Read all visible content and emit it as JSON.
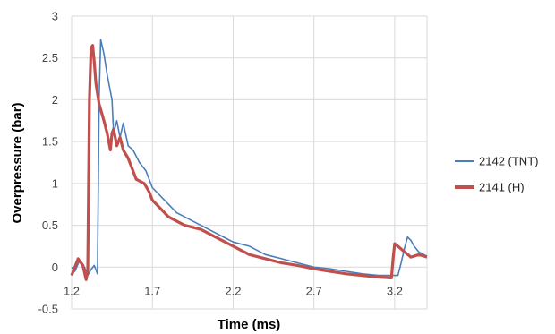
{
  "chart_data": {
    "type": "line",
    "title": "",
    "xlabel": "Time (ms)",
    "ylabel": "Overpressure (bar)",
    "xlim": [
      1.2,
      3.4
    ],
    "ylim": [
      -0.5,
      3
    ],
    "xticks": [
      "1.2",
      "1.7",
      "2.2",
      "2.7",
      "3.2"
    ],
    "xtick_values": [
      1.2,
      1.7,
      2.2,
      2.7,
      3.2
    ],
    "yticks": [
      "-0.5",
      "0",
      "0.5",
      "1",
      "1.5",
      "2",
      "2.5",
      "3"
    ],
    "ytick_values": [
      -0.5,
      0,
      0.5,
      1,
      1.5,
      2,
      2.5,
      3
    ],
    "grid": true,
    "legend_position": "right",
    "series": [
      {
        "name": "2142 (TNT)",
        "color": "#4a7ebb",
        "points": [
          [
            1.2,
            0.0
          ],
          [
            1.22,
            -0.05
          ],
          [
            1.25,
            0.08
          ],
          [
            1.28,
            0.0
          ],
          [
            1.3,
            -0.1
          ],
          [
            1.32,
            -0.03
          ],
          [
            1.34,
            0.02
          ],
          [
            1.36,
            -0.08
          ],
          [
            1.37,
            2.0
          ],
          [
            1.38,
            2.72
          ],
          [
            1.4,
            2.55
          ],
          [
            1.42,
            2.3
          ],
          [
            1.45,
            2.0
          ],
          [
            1.46,
            1.6
          ],
          [
            1.48,
            1.75
          ],
          [
            1.5,
            1.55
          ],
          [
            1.52,
            1.72
          ],
          [
            1.55,
            1.45
          ],
          [
            1.58,
            1.4
          ],
          [
            1.62,
            1.25
          ],
          [
            1.66,
            1.15
          ],
          [
            1.7,
            0.95
          ],
          [
            1.75,
            0.85
          ],
          [
            1.8,
            0.75
          ],
          [
            1.85,
            0.65
          ],
          [
            1.9,
            0.6
          ],
          [
            1.95,
            0.55
          ],
          [
            2.0,
            0.5
          ],
          [
            2.1,
            0.4
          ],
          [
            2.2,
            0.3
          ],
          [
            2.3,
            0.25
          ],
          [
            2.4,
            0.15
          ],
          [
            2.5,
            0.1
          ],
          [
            2.6,
            0.05
          ],
          [
            2.7,
            0.0
          ],
          [
            2.8,
            -0.02
          ],
          [
            2.9,
            -0.05
          ],
          [
            3.0,
            -0.08
          ],
          [
            3.1,
            -0.1
          ],
          [
            3.2,
            -0.1
          ],
          [
            3.22,
            -0.1
          ],
          [
            3.24,
            0.05
          ],
          [
            3.26,
            0.22
          ],
          [
            3.28,
            0.36
          ],
          [
            3.3,
            0.32
          ],
          [
            3.32,
            0.25
          ],
          [
            3.35,
            0.18
          ],
          [
            3.38,
            0.15
          ],
          [
            3.4,
            0.13
          ]
        ]
      },
      {
        "name": "2141 (H)",
        "color": "#c0504d",
        "points": [
          [
            1.2,
            -0.1
          ],
          [
            1.22,
            0.0
          ],
          [
            1.24,
            0.1
          ],
          [
            1.27,
            0.02
          ],
          [
            1.29,
            -0.15
          ],
          [
            1.3,
            -0.05
          ],
          [
            1.31,
            2.0
          ],
          [
            1.32,
            2.62
          ],
          [
            1.33,
            2.65
          ],
          [
            1.34,
            2.45
          ],
          [
            1.35,
            2.2
          ],
          [
            1.37,
            1.95
          ],
          [
            1.4,
            1.75
          ],
          [
            1.42,
            1.6
          ],
          [
            1.44,
            1.4
          ],
          [
            1.45,
            1.6
          ],
          [
            1.46,
            1.65
          ],
          [
            1.48,
            1.45
          ],
          [
            1.5,
            1.55
          ],
          [
            1.52,
            1.4
          ],
          [
            1.55,
            1.3
          ],
          [
            1.58,
            1.15
          ],
          [
            1.6,
            1.05
          ],
          [
            1.65,
            1.0
          ],
          [
            1.68,
            0.9
          ],
          [
            1.7,
            0.8
          ],
          [
            1.75,
            0.7
          ],
          [
            1.8,
            0.6
          ],
          [
            1.85,
            0.55
          ],
          [
            1.9,
            0.5
          ],
          [
            2.0,
            0.45
          ],
          [
            2.1,
            0.35
          ],
          [
            2.2,
            0.25
          ],
          [
            2.3,
            0.15
          ],
          [
            2.4,
            0.1
          ],
          [
            2.5,
            0.05
          ],
          [
            2.6,
            0.02
          ],
          [
            2.7,
            -0.02
          ],
          [
            2.8,
            -0.05
          ],
          [
            2.9,
            -0.08
          ],
          [
            3.0,
            -0.1
          ],
          [
            3.1,
            -0.12
          ],
          [
            3.18,
            -0.13
          ],
          [
            3.19,
            0.1
          ],
          [
            3.2,
            0.28
          ],
          [
            3.22,
            0.25
          ],
          [
            3.25,
            0.2
          ],
          [
            3.3,
            0.12
          ],
          [
            3.35,
            0.15
          ],
          [
            3.4,
            0.12
          ]
        ]
      }
    ]
  }
}
